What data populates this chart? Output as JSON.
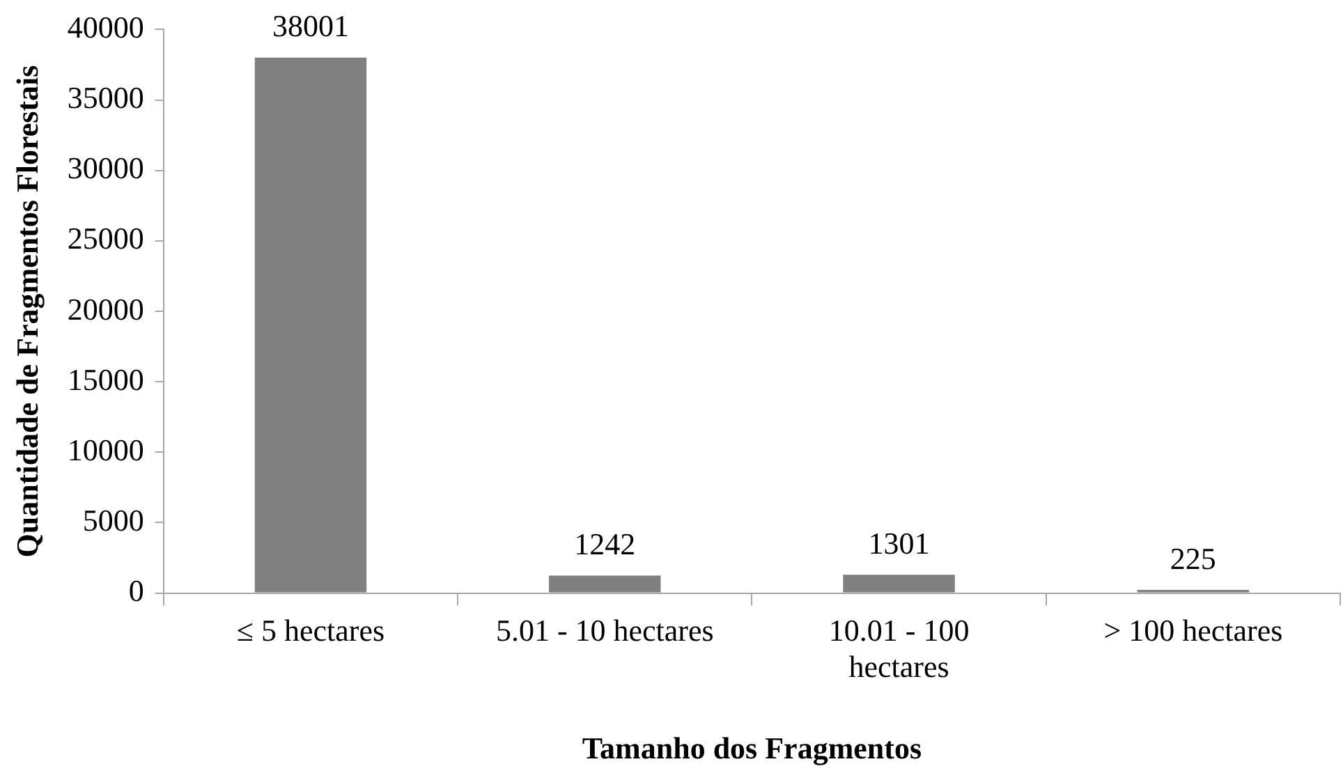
{
  "chart_data": {
    "type": "bar",
    "xlabel": "Tamanho dos Fragmentos",
    "ylabel": "Quantidade de Fragmentos Florestais",
    "categories": [
      "≤ 5 hectares",
      "5.01 - 10 hectares",
      "10.01 - 100 hectares",
      "> 100 hectares"
    ],
    "values": [
      38001,
      1242,
      1301,
      225
    ],
    "color": "#808080",
    "ylim": [
      0,
      40000
    ],
    "yticks": [
      0,
      5000,
      10000,
      15000,
      20000,
      25000,
      30000,
      35000,
      40000
    ],
    "data_labels": true
  }
}
